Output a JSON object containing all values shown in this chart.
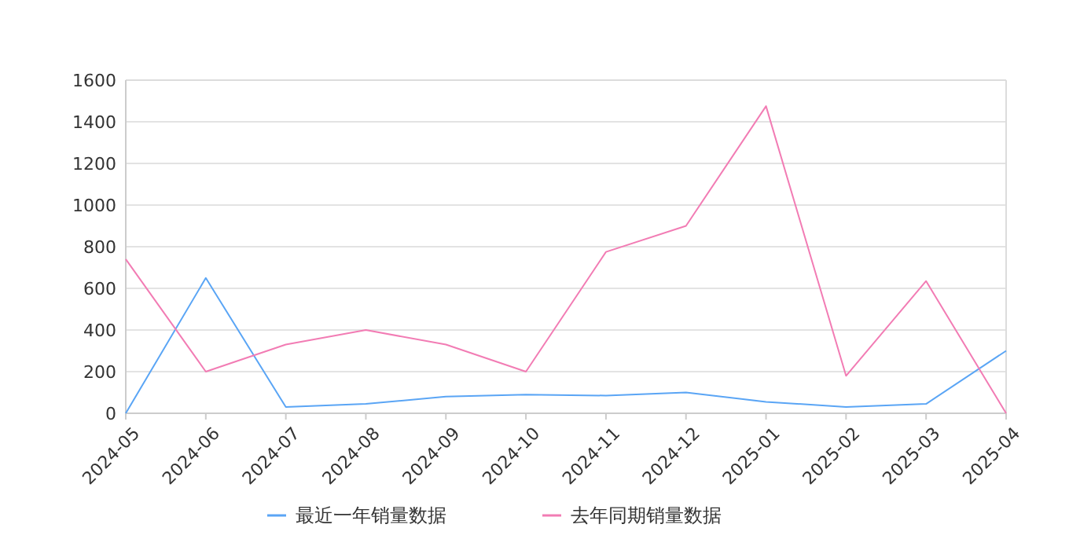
{
  "chart_data": {
    "type": "line",
    "categories": [
      "2024-05",
      "2024-06",
      "2024-07",
      "2024-08",
      "2024-09",
      "2024-10",
      "2024-11",
      "2024-12",
      "2025-01",
      "2025-02",
      "2025-03",
      "2025-04"
    ],
    "series": [
      {
        "name": "最近一年销量数据",
        "color": "#5aa5f5",
        "values": [
          0,
          650,
          30,
          45,
          80,
          90,
          85,
          100,
          55,
          30,
          45,
          300
        ]
      },
      {
        "name": "去年同期销量数据",
        "color": "#f27cb4",
        "values": [
          740,
          200,
          330,
          400,
          330,
          200,
          775,
          900,
          1475,
          180,
          635,
          0
        ]
      }
    ],
    "ylim": [
      0,
      1600
    ],
    "yticks": [
      0,
      200,
      400,
      600,
      800,
      1000,
      1200,
      1400,
      1600
    ],
    "grid": "y",
    "legend": "bottom",
    "marker": "none",
    "line_style": "solid"
  }
}
